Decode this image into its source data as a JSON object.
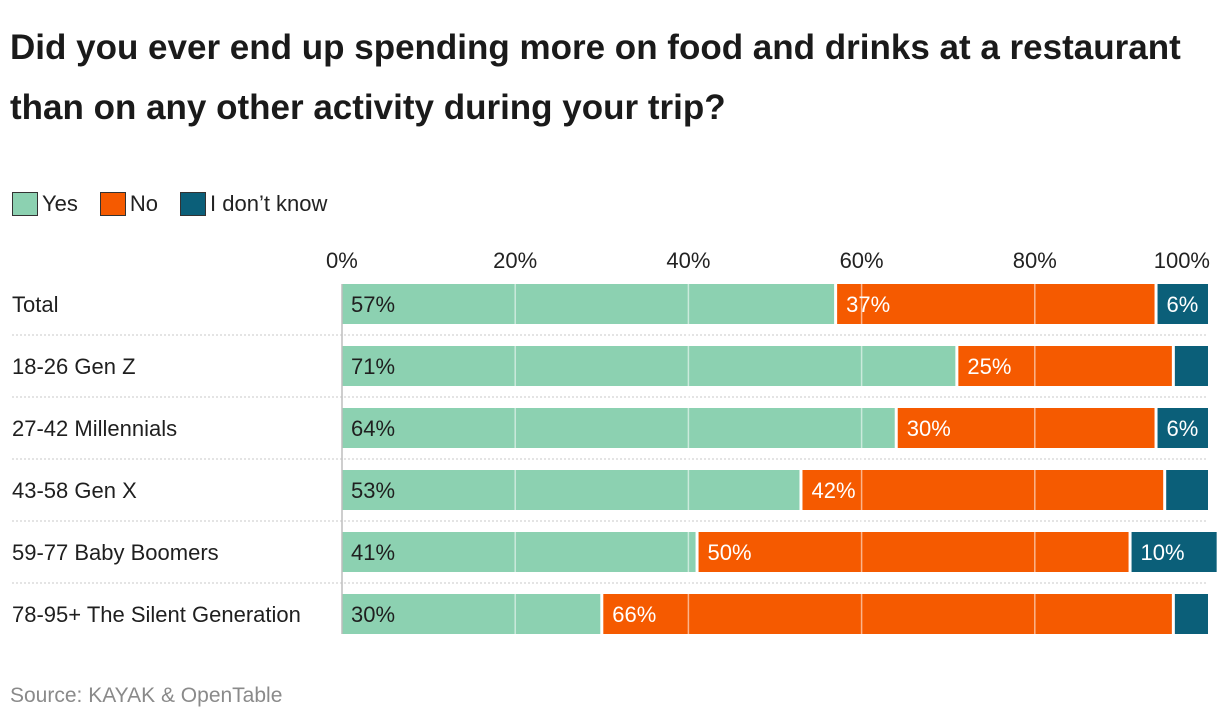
{
  "title": "Did you ever end up spending more on food and drinks at a restaurant than on any other activity during your trip?",
  "source": "Source: KAYAK & OpenTable",
  "legend": [
    {
      "label": "Yes",
      "color": "#8cd1b1"
    },
    {
      "label": "No",
      "color": "#f55a00"
    },
    {
      "label": "I don’t know",
      "color": "#0b5f79"
    }
  ],
  "chart_data": {
    "type": "bar",
    "orientation": "horizontal",
    "stacked": true,
    "categories": [
      "Total",
      "18-26 Gen Z",
      "27-42 Millennials",
      "43-58 Gen X",
      "59-77 Baby Boomers",
      "78-95+ The Silent Generation"
    ],
    "series": [
      {
        "name": "Yes",
        "color": "#8cd1b1",
        "values": [
          57,
          71,
          64,
          53,
          41,
          30
        ],
        "labels": [
          "57%",
          "71%",
          "64%",
          "53%",
          "41%",
          "30%"
        ]
      },
      {
        "name": "No",
        "color": "#f55a00",
        "values": [
          37,
          25,
          30,
          42,
          50,
          66
        ],
        "labels": [
          "37%",
          "25%",
          "30%",
          "42%",
          "50%",
          "66%"
        ]
      },
      {
        "name": "I don’t know",
        "color": "#0b5f79",
        "values": [
          6,
          4,
          6,
          5,
          10,
          4
        ],
        "labels": [
          "6%",
          "",
          "6%",
          "",
          "10%",
          ""
        ]
      }
    ],
    "xlim": [
      0,
      100
    ],
    "xticks": [
      "0%",
      "20%",
      "40%",
      "60%",
      "80%",
      "100%"
    ],
    "grid": true,
    "legend_position": "top-left"
  }
}
